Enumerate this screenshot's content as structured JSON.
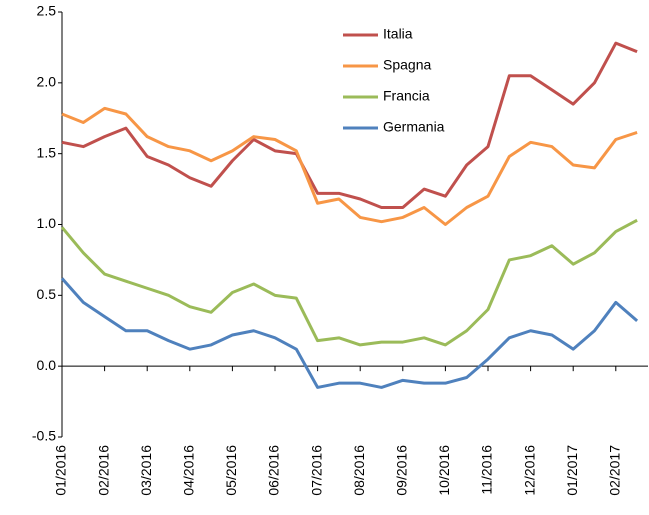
{
  "chart_data": {
    "type": "line",
    "categories": [
      "01/2016",
      null,
      "02/2016",
      null,
      "03/2016",
      null,
      "04/2016",
      null,
      "05/2016",
      null,
      "06/2016",
      null,
      "07/2016",
      null,
      "08/2016",
      null,
      "09/2016",
      null,
      "10/2016",
      null,
      "11/2016",
      null,
      "12/2016",
      null,
      "01/2017",
      null,
      "02/2017",
      null
    ],
    "series": [
      {
        "name": "Italia",
        "color": "#c0504d",
        "values": [
          1.58,
          1.55,
          1.62,
          1.68,
          1.48,
          1.42,
          1.33,
          1.27,
          1.45,
          1.6,
          1.52,
          1.5,
          1.22,
          1.22,
          1.18,
          1.12,
          1.12,
          1.25,
          1.2,
          1.42,
          1.55,
          2.05,
          2.05,
          1.95,
          1.85,
          2.0,
          2.28,
          2.22
        ]
      },
      {
        "name": "Spagna",
        "color": "#f79646",
        "values": [
          1.78,
          1.72,
          1.82,
          1.78,
          1.62,
          1.55,
          1.52,
          1.45,
          1.52,
          1.62,
          1.6,
          1.52,
          1.15,
          1.18,
          1.05,
          1.02,
          1.05,
          1.12,
          1.0,
          1.12,
          1.2,
          1.48,
          1.58,
          1.55,
          1.42,
          1.4,
          1.6,
          1.65
        ]
      },
      {
        "name": "Francia",
        "color": "#9bbb59",
        "values": [
          0.98,
          0.8,
          0.65,
          0.6,
          0.55,
          0.5,
          0.42,
          0.38,
          0.52,
          0.58,
          0.5,
          0.48,
          0.18,
          0.2,
          0.15,
          0.17,
          0.17,
          0.2,
          0.15,
          0.25,
          0.4,
          0.75,
          0.78,
          0.85,
          0.72,
          0.8,
          0.95,
          1.03
        ]
      },
      {
        "name": "Germania",
        "color": "#4f81bd",
        "values": [
          0.62,
          0.45,
          0.35,
          0.25,
          0.25,
          0.18,
          0.12,
          0.15,
          0.22,
          0.25,
          0.2,
          0.12,
          -0.15,
          -0.12,
          -0.12,
          -0.15,
          -0.1,
          -0.12,
          -0.12,
          -0.08,
          0.05,
          0.2,
          0.25,
          0.22,
          0.12,
          0.25,
          0.45,
          0.32
        ]
      }
    ],
    "ylim": [
      -0.5,
      2.5
    ],
    "yticks": [
      -0.5,
      {
        "value": 0,
        "label": "0.0"
      },
      0.5,
      {
        "value": 1,
        "label": "1.0"
      },
      1.5,
      {
        "value": 2,
        "label": "2.0"
      },
      2.5
    ]
  }
}
